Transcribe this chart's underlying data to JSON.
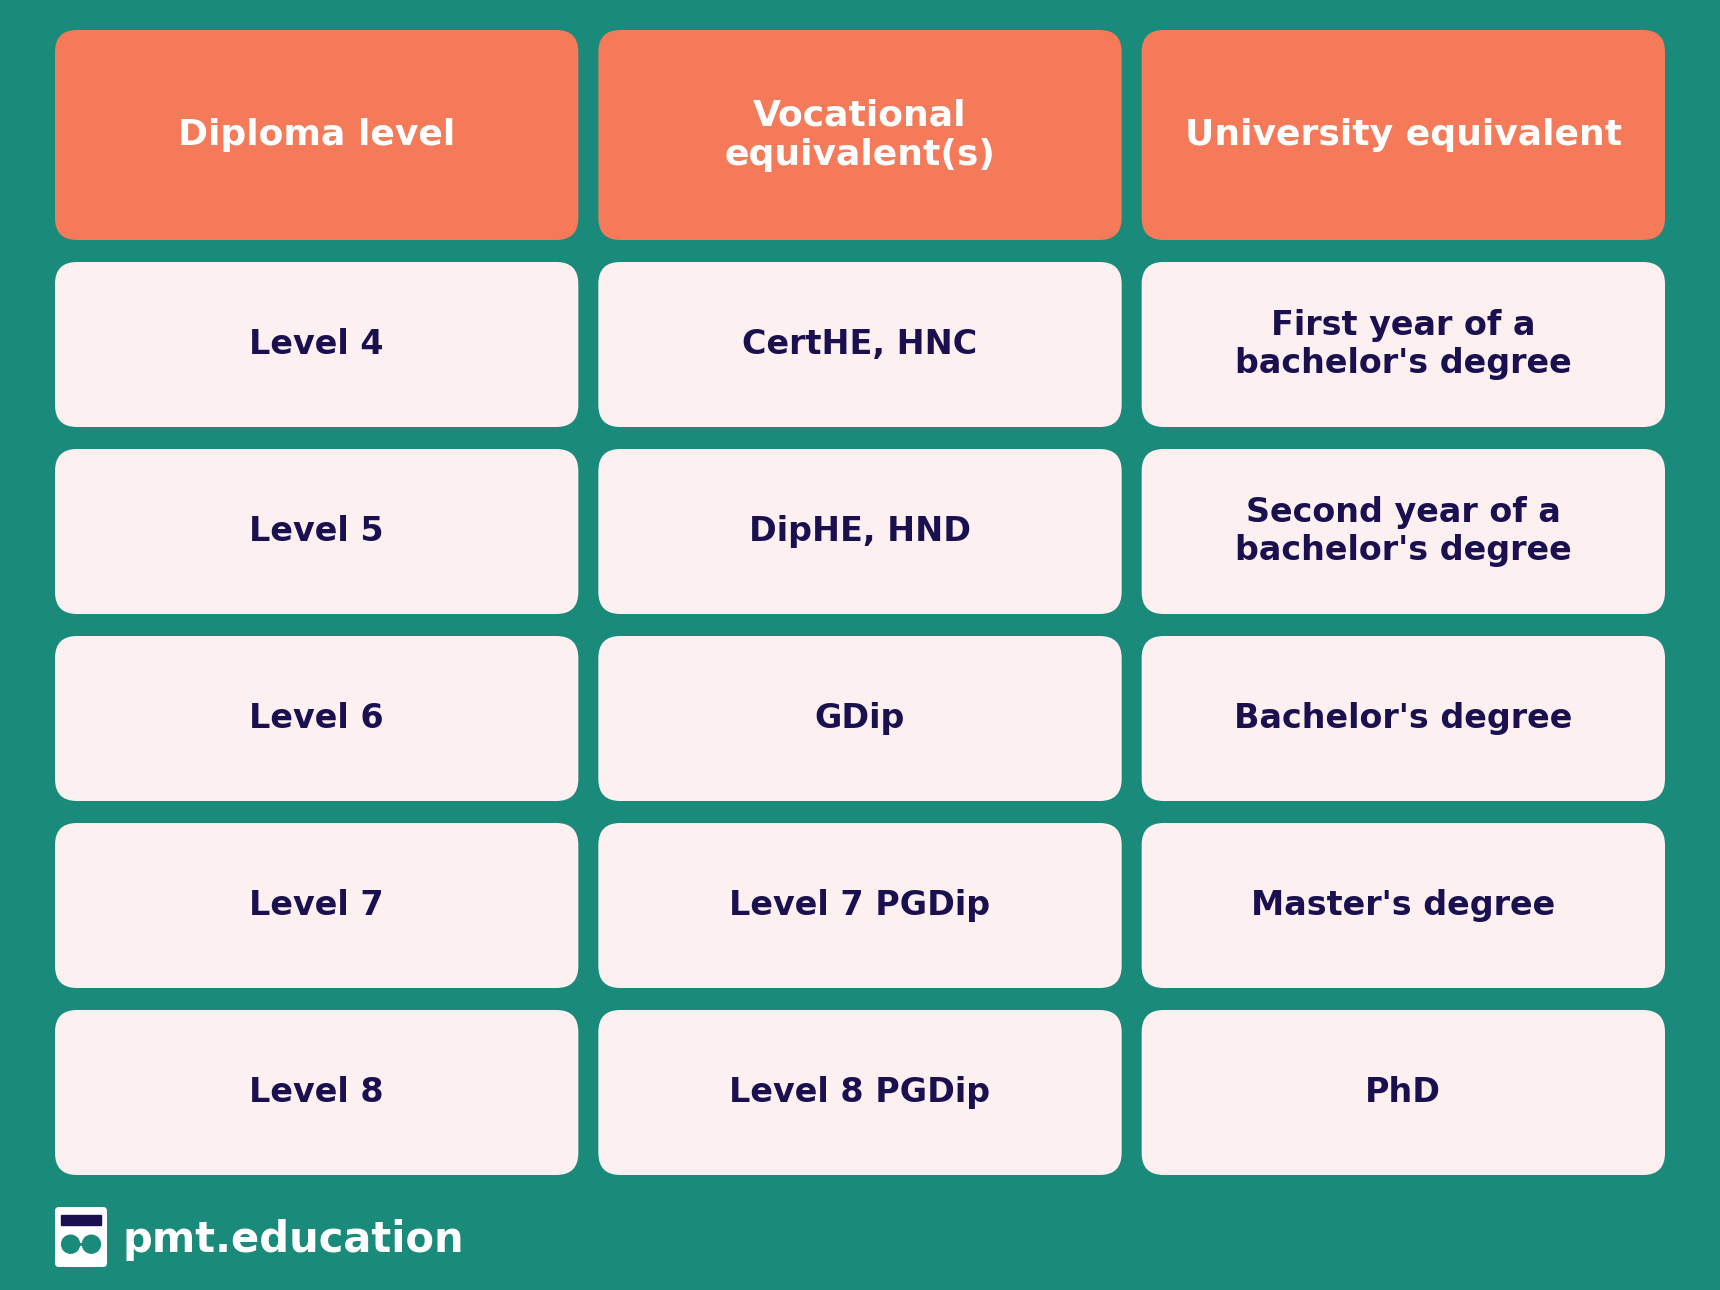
{
  "bg_color": "#1a8a7a",
  "header_color": "#f47a5a",
  "cell_color": "#fdf0f0",
  "header_text_color": "#ffffff",
  "cell_text_color": "#1a1050",
  "brand_text_color": "#ffffff",
  "columns": [
    "Diploma level",
    "Vocational\nequivalent(s)",
    "University equivalent"
  ],
  "rows": [
    [
      "Level 4",
      "CertHE, HNC",
      "First year of a\nbachelor's degree"
    ],
    [
      "Level 5",
      "DipHE, HND",
      "Second year of a\nbachelor's degree"
    ],
    [
      "Level 6",
      "GDip",
      "Bachelor's degree"
    ],
    [
      "Level 7",
      "Level 7 PGDip",
      "Master's degree"
    ],
    [
      "Level 8",
      "Level 8 PGDip",
      "PhD"
    ]
  ],
  "brand_text": "pmt.education",
  "fig_width": 17.2,
  "fig_height": 12.9,
  "dpi": 100
}
